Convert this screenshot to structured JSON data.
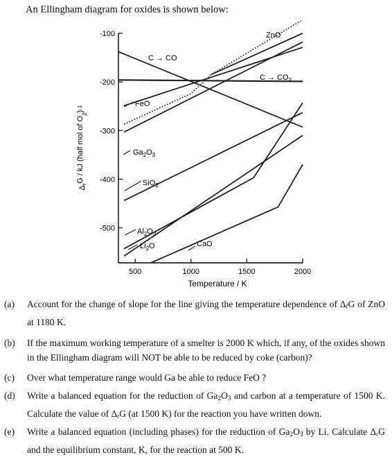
{
  "intro": "An Ellingham diagram for oxides is shown below:",
  "chart_data": {
    "type": "line",
    "ylabel_parts": [
      "Δ",
      "f",
      "G / kJ (half mol of O",
      "2",
      ")",
      "-1"
    ],
    "xlabel": "Temperature / K",
    "xlim": [
      350,
      2000
    ],
    "ylim": [
      -572,
      -100
    ],
    "xticks": [
      500,
      1000,
      1500,
      2000
    ],
    "yticks": [
      -100,
      -200,
      -300,
      -400,
      -500
    ],
    "series": [
      {
        "id": "c-co",
        "style": "solid",
        "points": [
          [
            350,
            -138
          ],
          [
            2000,
            -293
          ]
        ]
      },
      {
        "id": "c-co2",
        "style": "solid",
        "points": [
          [
            350,
            -196
          ],
          [
            2000,
            -199
          ]
        ]
      },
      {
        "id": "zno",
        "style": "dotted",
        "points": [
          [
            400,
            -287
          ],
          [
            1000,
            -224
          ],
          [
            1180,
            -185
          ],
          [
            2000,
            -72
          ]
        ]
      },
      {
        "id": "zno-upper",
        "style": "solid",
        "points": [
          [
            1180,
            -185
          ],
          [
            2000,
            -100
          ]
        ]
      },
      {
        "id": "feo",
        "style": "solid",
        "points": [
          [
            400,
            -249
          ],
          [
            2000,
            -129
          ]
        ]
      },
      {
        "id": "ga2o3",
        "style": "solid",
        "points": [
          [
            400,
            -303
          ],
          [
            2000,
            -118
          ]
        ]
      },
      {
        "id": "sio2",
        "style": "solid",
        "points": [
          [
            400,
            -444
          ],
          [
            2000,
            -263
          ]
        ]
      },
      {
        "id": "al2o3",
        "style": "solid",
        "points": [
          [
            400,
            -543
          ],
          [
            1560,
            -397
          ],
          [
            2000,
            -243
          ]
        ]
      },
      {
        "id": "li2o",
        "style": "solid",
        "points": [
          [
            400,
            -558
          ],
          [
            2000,
            -310
          ]
        ]
      },
      {
        "id": "cao",
        "style": "solid",
        "points": [
          [
            640,
            -572
          ],
          [
            1780,
            -457
          ],
          [
            2000,
            -370
          ]
        ]
      }
    ],
    "labels": [
      {
        "series": "c-co",
        "text": "C → CO"
      },
      {
        "series": "c-co2",
        "parts": [
          "C → CO",
          "2"
        ]
      },
      {
        "series": "zno",
        "text": "ZnO"
      },
      {
        "series": "feo",
        "text": "FeO"
      },
      {
        "series": "ga2o3",
        "parts": [
          "Ga",
          "2",
          "O",
          "3"
        ]
      },
      {
        "series": "sio2",
        "parts": [
          "SiO",
          "2"
        ]
      },
      {
        "series": "al2o3",
        "parts": [
          "Al",
          "2",
          "O",
          "3"
        ]
      },
      {
        "series": "li2o",
        "parts": [
          "Li",
          "2",
          "O"
        ]
      },
      {
        "series": "cao",
        "text": "CaO"
      }
    ]
  },
  "questions": [
    {
      "label": "(a)",
      "parts": [
        "Account for the change of slope for the line giving the temperature dependence of Δ",
        "f",
        "G of ZnO at 1180 K."
      ]
    },
    {
      "label": "(b)",
      "parts": [
        "If the maximum working temperature of a smelter is 2000 K which, if any, of the oxides shown in the Ellingham diagram will NOT be able to be reduced by coke (carbon)?"
      ]
    },
    {
      "label": "(c)",
      "parts": [
        "Over what temperature range would Ga be able to reduce FeO ?"
      ]
    },
    {
      "label": "(d)",
      "parts": [
        "Write a balanced equation for the reduction of Ga",
        "2",
        "O",
        "3",
        " and carbon at a temperature of 1500 K. Calculate the value of Δ",
        "r",
        "G (at 1500 K) for the reaction you have written down."
      ]
    },
    {
      "label": "(e)",
      "parts": [
        "Write a balanced equation (including phases) for the reduction of Ga",
        "2",
        "O",
        "3",
        " by Li. Calculate Δ",
        "r",
        "G and the equilibrium constant, K, for the reaction at 500 K."
      ]
    }
  ]
}
